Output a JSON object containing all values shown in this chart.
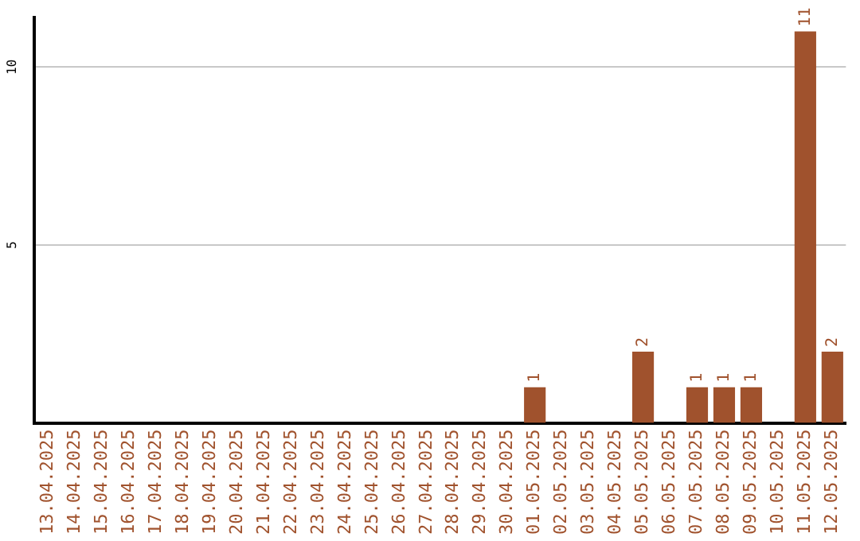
{
  "chart_data": {
    "type": "bar",
    "categories": [
      "13.04.2025",
      "14.04.2025",
      "15.04.2025",
      "16.04.2025",
      "17.04.2025",
      "18.04.2025",
      "19.04.2025",
      "20.04.2025",
      "21.04.2025",
      "22.04.2025",
      "23.04.2025",
      "24.04.2025",
      "25.04.2025",
      "26.04.2025",
      "27.04.2025",
      "28.04.2025",
      "29.04.2025",
      "30.04.2025",
      "01.05.2025",
      "02.05.2025",
      "03.05.2025",
      "04.05.2025",
      "05.05.2025",
      "06.05.2025",
      "07.05.2025",
      "08.05.2025",
      "09.05.2025",
      "10.05.2025",
      "11.05.2025",
      "12.05.2025"
    ],
    "values": [
      0,
      0,
      0,
      0,
      0,
      0,
      0,
      0,
      0,
      0,
      0,
      0,
      0,
      0,
      0,
      0,
      0,
      0,
      1,
      0,
      0,
      0,
      2,
      0,
      1,
      1,
      1,
      0,
      11,
      2
    ],
    "value_labels": [
      null,
      null,
      null,
      null,
      null,
      null,
      null,
      null,
      null,
      null,
      null,
      null,
      null,
      null,
      null,
      null,
      null,
      null,
      "1",
      null,
      null,
      null,
      "2",
      null,
      "1",
      "1",
      "1",
      null,
      "11",
      "2"
    ],
    "color": "#a0522d",
    "ylim": [
      0,
      11.4
    ],
    "yticks": [
      5,
      10
    ],
    "grid": "y",
    "legend": false
  }
}
